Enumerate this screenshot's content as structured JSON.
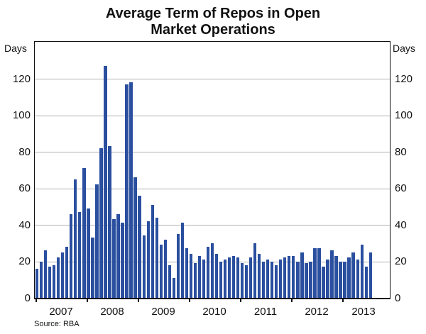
{
  "title": {
    "full": "Average Term of Repos in Open Market Operations",
    "line1": "Average Term of Repos in Open",
    "line2": "Market Operations"
  },
  "axes": {
    "unit_left": "Days",
    "unit_right": "Days",
    "y_ticks": [
      0,
      20,
      40,
      60,
      80,
      100,
      120
    ],
    "x_ticks": [
      "2007",
      "2008",
      "2009",
      "2010",
      "2011",
      "2012",
      "2013"
    ]
  },
  "source": "Source: RBA",
  "colors": {
    "bar": "#2b4f9f",
    "grid": "#b0b0b0",
    "axis": "#111111",
    "background": "#ffffff"
  },
  "chart_data": {
    "type": "bar",
    "title": "Average Term of Repos in Open Market Operations",
    "xlabel": "",
    "ylabel": "Days",
    "ylim": [
      0,
      140
    ],
    "grid": "horizontal",
    "legend": "none",
    "frequency": "monthly",
    "start_month": "2007-01",
    "end_month": "2013-07",
    "categories": [
      "2007-01",
      "2007-02",
      "2007-03",
      "2007-04",
      "2007-05",
      "2007-06",
      "2007-07",
      "2007-08",
      "2007-09",
      "2007-10",
      "2007-11",
      "2007-12",
      "2008-01",
      "2008-02",
      "2008-03",
      "2008-04",
      "2008-05",
      "2008-06",
      "2008-07",
      "2008-08",
      "2008-09",
      "2008-10",
      "2008-11",
      "2008-12",
      "2009-01",
      "2009-02",
      "2009-03",
      "2009-04",
      "2009-05",
      "2009-06",
      "2009-07",
      "2009-08",
      "2009-09",
      "2009-10",
      "2009-11",
      "2009-12",
      "2010-01",
      "2010-02",
      "2010-03",
      "2010-04",
      "2010-05",
      "2010-06",
      "2010-07",
      "2010-08",
      "2010-09",
      "2010-10",
      "2010-11",
      "2010-12",
      "2011-01",
      "2011-02",
      "2011-03",
      "2011-04",
      "2011-05",
      "2011-06",
      "2011-07",
      "2011-08",
      "2011-09",
      "2011-10",
      "2011-11",
      "2011-12",
      "2012-01",
      "2012-02",
      "2012-03",
      "2012-04",
      "2012-05",
      "2012-06",
      "2012-07",
      "2012-08",
      "2012-09",
      "2012-10",
      "2012-11",
      "2012-12",
      "2013-01",
      "2013-02",
      "2013-03",
      "2013-04",
      "2013-05",
      "2013-06",
      "2013-07"
    ],
    "values": [
      16,
      20,
      26,
      17,
      18,
      22,
      25,
      28,
      46,
      65,
      47,
      71,
      49,
      33,
      62,
      82,
      127,
      83,
      43,
      46,
      41,
      117,
      118,
      66,
      56,
      34,
      42,
      51,
      44,
      29,
      32,
      18,
      11,
      35,
      41,
      27,
      24,
      19,
      23,
      21,
      28,
      30,
      24,
      20,
      21,
      22,
      23,
      22,
      19,
      18,
      22,
      30,
      24,
      20,
      21,
      20,
      18,
      21,
      22,
      23,
      23,
      20,
      25,
      19,
      20,
      27,
      27,
      17,
      21,
      26,
      23,
      20,
      20,
      22,
      25,
      21,
      29,
      17,
      25
    ]
  }
}
